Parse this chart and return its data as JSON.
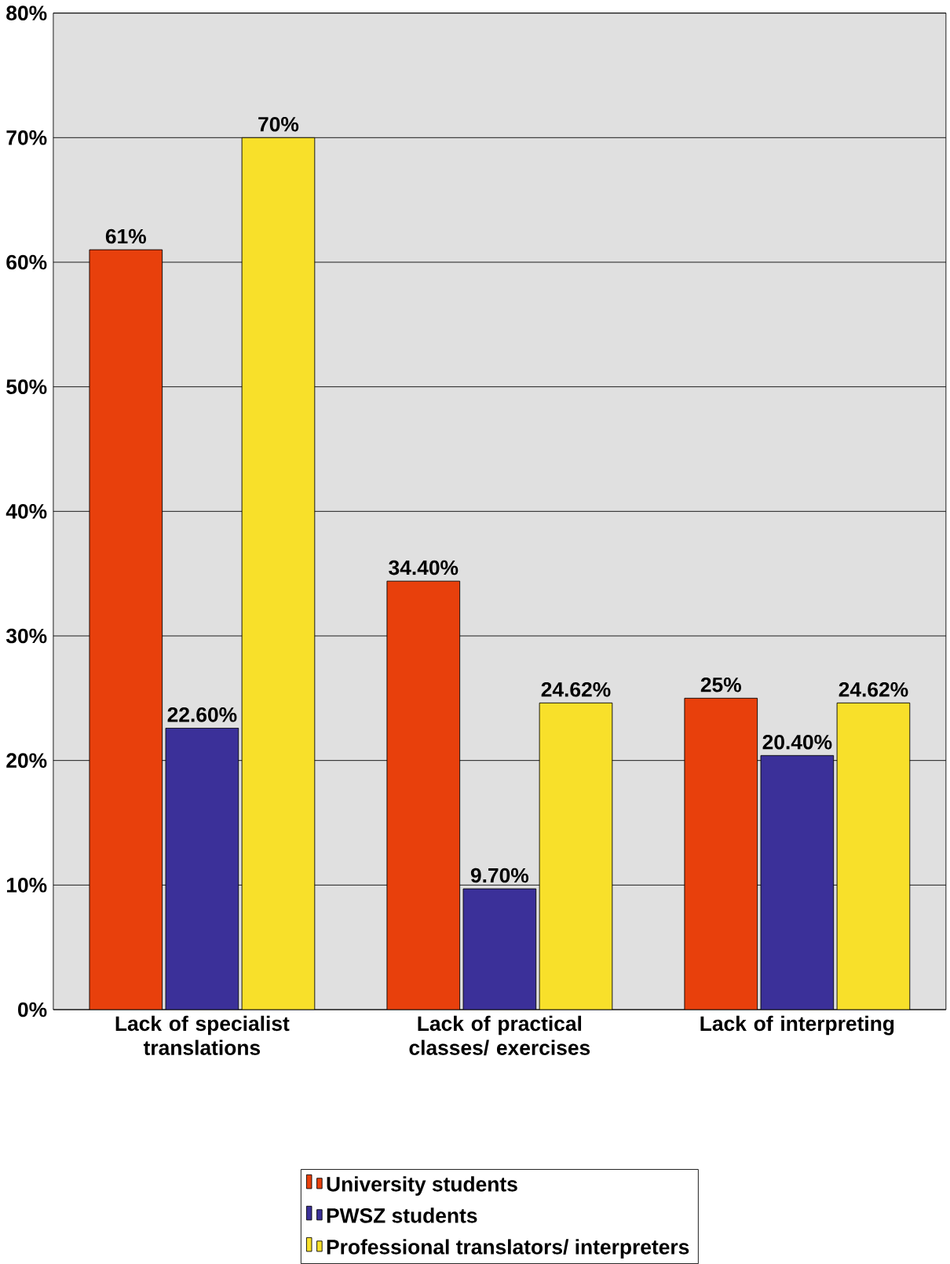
{
  "chart_data": {
    "type": "bar",
    "categories": [
      "Lack of specialist translations",
      "Lack of practical classes/ exercises",
      "Lack of interpreting"
    ],
    "series": [
      {
        "name": "University students",
        "color": "#e8400c",
        "values": [
          61,
          34.4,
          25
        ],
        "value_labels": [
          "61%",
          "34.40%",
          "25%"
        ]
      },
      {
        "name": "PWSZ students",
        "color": "#3b3099",
        "values": [
          22.6,
          9.7,
          20.4
        ],
        "value_labels": [
          "22.60%",
          "9.70%",
          "20.40%"
        ]
      },
      {
        "name": "Professional translators/ interpreters",
        "color": "#f8e02a",
        "values": [
          70,
          24.62,
          24.62
        ],
        "value_labels": [
          "70%",
          "24.62%",
          "24.62%"
        ]
      }
    ],
    "ylim": [
      0,
      80
    ],
    "yticks": [
      {
        "value": 0,
        "label": "0%"
      },
      {
        "value": 10,
        "label": "10%"
      },
      {
        "value": 20,
        "label": "20%"
      },
      {
        "value": 30,
        "label": "30%"
      },
      {
        "value": 40,
        "label": "40%"
      },
      {
        "value": 50,
        "label": "50%"
      },
      {
        "value": 60,
        "label": "60%"
      },
      {
        "value": 70,
        "label": "70%"
      },
      {
        "value": 80,
        "label": "80%"
      }
    ],
    "grid": "y",
    "legend": "bottom"
  }
}
